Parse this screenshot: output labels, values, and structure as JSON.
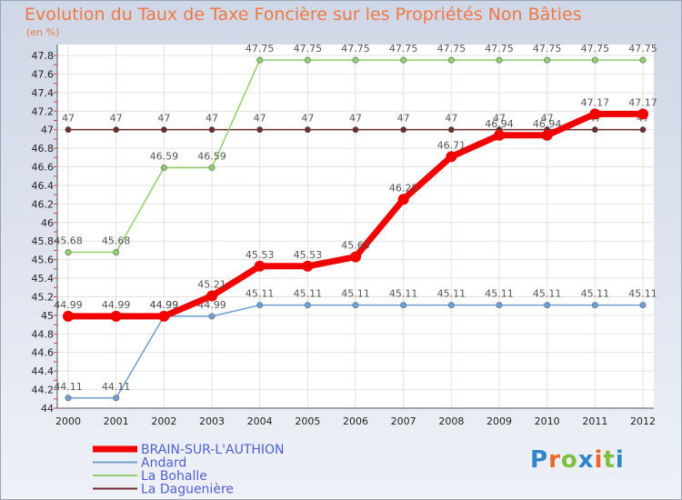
{
  "header": {
    "title": "Evolution du Taux de Taxe Foncière sur les Propriétés Non Bâties",
    "unit": "(en %)"
  },
  "logo": {
    "text": "Proxiti",
    "letters": [
      "P",
      "r",
      "o",
      "x",
      "i",
      "t",
      "i"
    ],
    "colors": [
      "#2f86c8",
      "#e8682c",
      "#7fbf3f",
      "#2f86c8",
      "#e8682c",
      "#7fbf3f",
      "#2f86c8"
    ]
  },
  "chart_data": {
    "type": "line",
    "title": "Evolution du Taux de Taxe Foncière sur les Propriétés Non Bâties",
    "ylabel": "(en %)",
    "xlabel": "",
    "x": [
      "2000",
      "2001",
      "2002",
      "2003",
      "2004",
      "2005",
      "2006",
      "2007",
      "2008",
      "2009",
      "2010",
      "2011",
      "2012"
    ],
    "ylim": [
      44,
      47.8
    ],
    "yticks": [
      "44",
      "44.2",
      "44.4",
      "44.6",
      "44.8",
      "45",
      "45.2",
      "45.4",
      "45.6",
      "45.8",
      "46",
      "46.2",
      "46.4",
      "46.6",
      "46.8",
      "47",
      "47.2",
      "47.4",
      "47.6",
      "47.8"
    ],
    "grid": true,
    "legend_position": "bottom-left",
    "series": [
      {
        "name": "La Daguenière",
        "color": "#6e2c2c",
        "values": [
          47,
          47,
          47,
          47,
          47,
          47,
          47,
          47,
          47,
          47,
          47,
          47,
          47
        ],
        "labels": [
          "47",
          "47",
          "47",
          "47",
          "47",
          "47",
          "47",
          "47",
          "47",
          "47",
          "47",
          "47",
          "47"
        ]
      },
      {
        "name": "La Bohalle",
        "color": "#8fd06a",
        "values": [
          45.68,
          45.68,
          46.59,
          46.59,
          47.75,
          47.75,
          47.75,
          47.75,
          47.75,
          47.75,
          47.75,
          47.75,
          47.75
        ],
        "labels": [
          "45.68",
          "45.68",
          "46.59",
          "46.59",
          "47.75",
          "47.75",
          "47.75",
          "47.75",
          "47.75",
          "47.75",
          "47.75",
          "47.75",
          "47.75"
        ]
      },
      {
        "name": "Andard",
        "color": "#6f9ed0",
        "values": [
          44.11,
          44.11,
          44.99,
          44.99,
          45.11,
          45.11,
          45.11,
          45.11,
          45.11,
          45.11,
          45.11,
          45.11,
          45.11
        ],
        "labels": [
          "44.11",
          "44.11",
          "44.99",
          "44.99",
          "45.11",
          "45.11",
          "45.11",
          "45.11",
          "45.11",
          "45.11",
          "45.11",
          "45.11",
          "45.11"
        ]
      },
      {
        "name": "BRAIN-SUR-L'AUTHION",
        "color": "#f20000",
        "values": [
          44.99,
          44.99,
          44.99,
          45.21,
          45.53,
          45.53,
          45.63,
          46.25,
          46.71,
          46.94,
          46.94,
          47.17,
          47.17
        ],
        "labels": [
          "44.99",
          "44.99",
          "44.99",
          "45.21",
          "45.53",
          "45.53",
          "45.63",
          "46.25",
          "46.71",
          "46.94",
          "46.94",
          "47.17",
          "47.17"
        ]
      }
    ],
    "legend": [
      "BRAIN-SUR-L'AUTHION",
      "Andard",
      "La Bohalle",
      "La Daguenière"
    ]
  }
}
